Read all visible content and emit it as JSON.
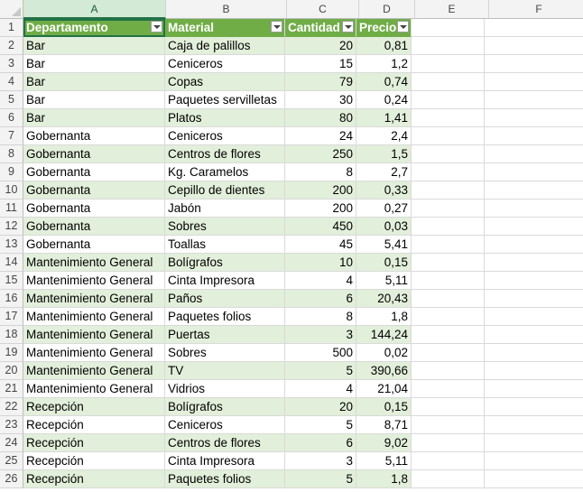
{
  "columns": [
    "A",
    "B",
    "C",
    "D",
    "E",
    "F"
  ],
  "headers": {
    "departamento": "Departamento",
    "material": "Material",
    "cantidad": "Cantidad",
    "precio": "Precio"
  },
  "rows": [
    {
      "n": "2",
      "dept": "Bar",
      "mat": "Caja de palillos",
      "qty": "20",
      "price": "0,81"
    },
    {
      "n": "3",
      "dept": "Bar",
      "mat": "Ceniceros",
      "qty": "15",
      "price": "1,2"
    },
    {
      "n": "4",
      "dept": "Bar",
      "mat": "Copas",
      "qty": "79",
      "price": "0,74"
    },
    {
      "n": "5",
      "dept": "Bar",
      "mat": "Paquetes servilletas",
      "qty": "30",
      "price": "0,24"
    },
    {
      "n": "6",
      "dept": "Bar",
      "mat": "Platos",
      "qty": "80",
      "price": "1,41"
    },
    {
      "n": "7",
      "dept": "Gobernanta",
      "mat": "Ceniceros",
      "qty": "24",
      "price": "2,4"
    },
    {
      "n": "8",
      "dept": "Gobernanta",
      "mat": "Centros de flores",
      "qty": "250",
      "price": "1,5"
    },
    {
      "n": "9",
      "dept": "Gobernanta",
      "mat": "Kg. Caramelos",
      "qty": "8",
      "price": "2,7"
    },
    {
      "n": "10",
      "dept": "Gobernanta",
      "mat": "Cepillo de dientes",
      "qty": "200",
      "price": "0,33"
    },
    {
      "n": "11",
      "dept": "Gobernanta",
      "mat": "Jabón",
      "qty": "200",
      "price": "0,27"
    },
    {
      "n": "12",
      "dept": "Gobernanta",
      "mat": "Sobres",
      "qty": "450",
      "price": "0,03"
    },
    {
      "n": "13",
      "dept": "Gobernanta",
      "mat": "Toallas",
      "qty": "45",
      "price": "5,41"
    },
    {
      "n": "14",
      "dept": "Mantenimiento General",
      "mat": "Bolígrafos",
      "qty": "10",
      "price": "0,15"
    },
    {
      "n": "15",
      "dept": "Mantenimiento General",
      "mat": "Cinta Impresora",
      "qty": "4",
      "price": "5,11"
    },
    {
      "n": "16",
      "dept": "Mantenimiento General",
      "mat": "Paños",
      "qty": "6",
      "price": "20,43"
    },
    {
      "n": "17",
      "dept": "Mantenimiento General",
      "mat": "Paquetes folios",
      "qty": "8",
      "price": "1,8"
    },
    {
      "n": "18",
      "dept": "Mantenimiento General",
      "mat": "Puertas",
      "qty": "3",
      "price": "144,24"
    },
    {
      "n": "19",
      "dept": "Mantenimiento General",
      "mat": "Sobres",
      "qty": "500",
      "price": "0,02"
    },
    {
      "n": "20",
      "dept": "Mantenimiento General",
      "mat": "TV",
      "qty": "5",
      "price": "390,66"
    },
    {
      "n": "21",
      "dept": "Mantenimiento General",
      "mat": "Vidrios",
      "qty": "4",
      "price": "21,04"
    },
    {
      "n": "22",
      "dept": "Recepción",
      "mat": "Bolígrafos",
      "qty": "20",
      "price": "0,15"
    },
    {
      "n": "23",
      "dept": "Recepción",
      "mat": "Ceniceros",
      "qty": "5",
      "price": "8,71"
    },
    {
      "n": "24",
      "dept": "Recepción",
      "mat": "Centros de flores",
      "qty": "6",
      "price": "9,02"
    },
    {
      "n": "25",
      "dept": "Recepción",
      "mat": "Cinta Impresora",
      "qty": "3",
      "price": "5,11"
    },
    {
      "n": "26",
      "dept": "Recepción",
      "mat": "Paquetes folios",
      "qty": "5",
      "price": "1,8"
    }
  ],
  "colors": {
    "header_fill": "#70ad47",
    "band_fill": "#e2efda",
    "selection": "#217346"
  }
}
